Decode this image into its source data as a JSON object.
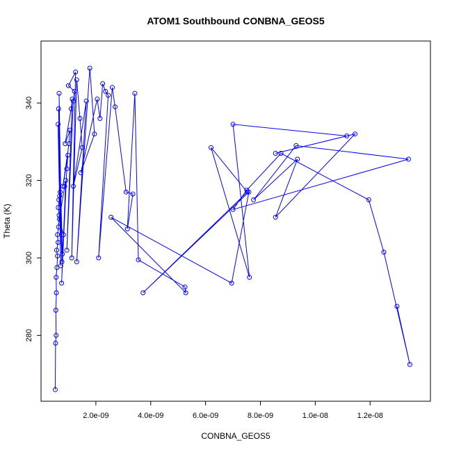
{
  "chart_data": {
    "type": "line",
    "title": "ATOM1 Southbound CONBNA_GEOS5",
    "xlabel": "CONBNA_GEOS5",
    "ylabel": "Theta (K)",
    "xlim": [
      0,
      1.42e-08
    ],
    "ylim": [
      263,
      356
    ],
    "x_ticks": [
      2e-09,
      4e-09,
      6e-09,
      8e-09,
      1e-08,
      1.2e-08
    ],
    "x_tick_labels": [
      "2.0e-09",
      "4.0e-09",
      "6.0e-09",
      "8.0e-09",
      "1.0e-08",
      "1.2e-08"
    ],
    "y_ticks": [
      280,
      300,
      320,
      340
    ],
    "y_tick_labels": [
      "280",
      "300",
      "320",
      "340"
    ],
    "series_color": "#0000ff",
    "markers": "open-circle",
    "grid": false,
    "series": [
      {
        "x": [
          5.2e-10,
          5.3e-10,
          5.5e-10,
          5.4e-10,
          5.6e-10,
          5.5e-10,
          5.8e-10,
          6e-10,
          5.7e-10,
          6.2e-10,
          6e-10,
          6.4e-10,
          6.6e-10,
          6.3e-10,
          6.8e-10,
          6.5e-10,
          7e-10,
          6.2e-10,
          7.2e-10,
          6.6e-10,
          7.6e-10,
          6.4e-10,
          7.8e-10,
          8.2e-10,
          6.7e-10,
          8.6e-10,
          9e-10,
          7.5e-10,
          9.4e-10,
          9.8e-10,
          8e-10,
          1.02e-09,
          1.06e-09,
          8.8e-10,
          1.1e-09,
          1.14e-09,
          9.4e-10,
          1.18e-09,
          1.22e-09,
          1e-09,
          1.26e-09,
          1.12e-09,
          1.3e-09,
          1.42e-09,
          1.5e-09,
          1.18e-09,
          1.65e-09,
          1.3e-09,
          1.78e-09,
          1.95e-09,
          1.45e-09,
          2.05e-09,
          2.15e-09,
          2.25e-09,
          2.35e-09,
          2.45e-09,
          2.1e-09,
          2.6e-09,
          2.7e-09,
          3.1e-09,
          3.35e-09,
          3.15e-09,
          3.42e-09,
          3.55e-09,
          5.25e-09,
          5.28e-09,
          2.55e-09,
          6.95e-09,
          7.58e-09,
          3.72e-09,
          7.52e-09,
          6.2e-09,
          7.6e-09,
          7e-09,
          1.115e-08,
          8.55e-09,
          1.145e-08,
          8.55e-09,
          9.35e-09,
          7.75e-09,
          9.3e-09,
          1.34e-08,
          7e-09,
          7.5e-09,
          8.75e-09,
          1.195e-08,
          1.25e-08,
          1.345e-08,
          1.298e-08
        ],
        "y": [
          266,
          278,
          280,
          286.5,
          291,
          295,
          297.5,
          300.5,
          302,
          304,
          306,
          308,
          311,
          313,
          316,
          315,
          317,
          334.5,
          298,
          342.5,
          299,
          338.5,
          301,
          306,
          310,
          318.5,
          320,
          293.5,
          323,
          326.5,
          318.5,
          329.5,
          333,
          329.5,
          338.5,
          341,
          302,
          340.5,
          343,
          344.5,
          348,
          300,
          346,
          336,
          328.5,
          318.5,
          340.5,
          299,
          349,
          332,
          322,
          341,
          336,
          345,
          343,
          342,
          300,
          344,
          339,
          317,
          316.5,
          307.5,
          342.5,
          299.5,
          292.5,
          291,
          310.5,
          293.5,
          317,
          291,
          317,
          328.5,
          295,
          334.5,
          331.5,
          327,
          332,
          310.5,
          325.5,
          315,
          329,
          325.5,
          312.5,
          317.5,
          327,
          315,
          301.5,
          272.5,
          287.5
        ]
      }
    ]
  }
}
